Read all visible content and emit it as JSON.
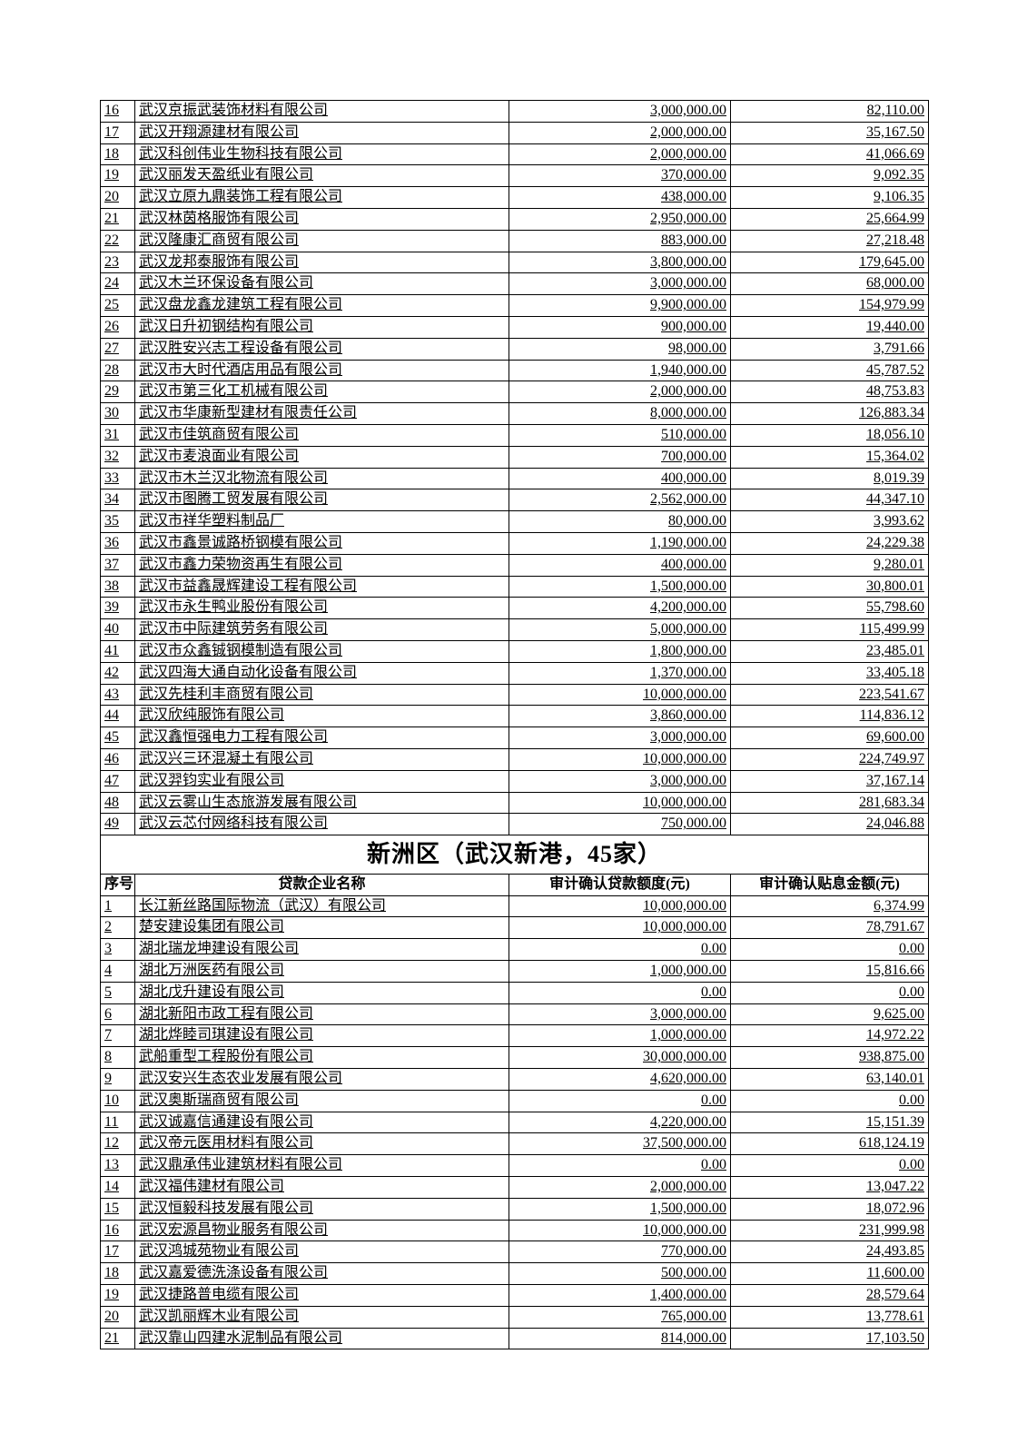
{
  "table1": {
    "rows": [
      {
        "idx": "16",
        "name": "武汉京振武装饰材料有限公司",
        "amt": "3,000,000.00",
        "int": "82,110.00"
      },
      {
        "idx": "17",
        "name": "武汉开翔源建材有限公司",
        "amt": "2,000,000.00",
        "int": "35,167.50"
      },
      {
        "idx": "18",
        "name": "武汉科创伟业生物科技有限公司",
        "amt": "2,000,000.00",
        "int": "41,066.69"
      },
      {
        "idx": "19",
        "name": "武汉丽发天盈纸业有限公司",
        "amt": "370,000.00",
        "int": "9,092.35"
      },
      {
        "idx": "20",
        "name": "武汉立原九鼎装饰工程有限公司",
        "amt": "438,000.00",
        "int": "9,106.35"
      },
      {
        "idx": "21",
        "name": "武汉林茵格服饰有限公司",
        "amt": "2,950,000.00",
        "int": "25,664.99"
      },
      {
        "idx": "22",
        "name": "武汉隆康汇商贸有限公司",
        "amt": "883,000.00",
        "int": "27,218.48"
      },
      {
        "idx": "23",
        "name": "武汉龙邦泰服饰有限公司",
        "amt": "3,800,000.00",
        "int": "179,645.00"
      },
      {
        "idx": "24",
        "name": "武汉木兰环保设备有限公司",
        "amt": "3,000,000.00",
        "int": "68,000.00"
      },
      {
        "idx": "25",
        "name": "武汉盘龙鑫龙建筑工程有限公司",
        "amt": "9,900,000.00",
        "int": "154,979.99"
      },
      {
        "idx": "26",
        "name": "武汉日升初钢结构有限公司",
        "amt": "900,000.00",
        "int": "19,440.00"
      },
      {
        "idx": "27",
        "name": "武汉胜安兴志工程设备有限公司",
        "amt": "98,000.00",
        "int": "3,791.66"
      },
      {
        "idx": "28",
        "name": "武汉市大时代酒店用品有限公司",
        "amt": "1,940,000.00",
        "int": "45,787.52"
      },
      {
        "idx": "29",
        "name": "武汉市第三化工机械有限公司",
        "amt": "2,000,000.00",
        "int": "48,753.83"
      },
      {
        "idx": "30",
        "name": "武汉市华康新型建材有限责任公司",
        "amt": "8,000,000.00",
        "int": "126,883.34"
      },
      {
        "idx": "31",
        "name": "武汉市佳筑商贸有限公司",
        "amt": "510,000.00",
        "int": "18,056.10"
      },
      {
        "idx": "32",
        "name": "武汉市麦浪面业有限公司",
        "amt": "700,000.00",
        "int": "15,364.02"
      },
      {
        "idx": "33",
        "name": "武汉市木兰汉北物流有限公司",
        "amt": "400,000.00",
        "int": "8,019.39"
      },
      {
        "idx": "34",
        "name": "武汉市图腾工贸发展有限公司",
        "amt": "2,562,000.00",
        "int": "44,347.10"
      },
      {
        "idx": "35",
        "name": "武汉市祥华塑料制品厂",
        "amt": "80,000.00",
        "int": "3,993.62"
      },
      {
        "idx": "36",
        "name": "武汉市鑫景诚路桥钢模有限公司",
        "amt": "1,190,000.00",
        "int": "24,229.38"
      },
      {
        "idx": "37",
        "name": "武汉市鑫力荣物资再生有限公司",
        "amt": "400,000.00",
        "int": "9,280.01"
      },
      {
        "idx": "38",
        "name": "武汉市益鑫晟辉建设工程有限公司",
        "amt": "1,500,000.00",
        "int": "30,800.01"
      },
      {
        "idx": "39",
        "name": "武汉市永生鸭业股份有限公司",
        "amt": "4,200,000.00",
        "int": "55,798.60"
      },
      {
        "idx": "40",
        "name": "武汉市中际建筑劳务有限公司",
        "amt": "5,000,000.00",
        "int": "115,499.99"
      },
      {
        "idx": "41",
        "name": "武汉市众鑫铖钢模制造有限公司",
        "amt": "1,800,000.00",
        "int": "23,485.01"
      },
      {
        "idx": "42",
        "name": "武汉四海大通自动化设备有限公司",
        "amt": "1,370,000.00",
        "int": "33,405.18"
      },
      {
        "idx": "43",
        "name": "武汉先桂利丰商贸有限公司",
        "amt": "10,000,000.00",
        "int": "223,541.67"
      },
      {
        "idx": "44",
        "name": "武汉欣纯服饰有限公司",
        "amt": "3,860,000.00",
        "int": "114,836.12"
      },
      {
        "idx": "45",
        "name": "武汉鑫恒强电力工程有限公司",
        "amt": "3,000,000.00",
        "int": "69,600.00"
      },
      {
        "idx": "46",
        "name": "武汉兴三环混凝土有限公司",
        "amt": "10,000,000.00",
        "int": "224,749.97"
      },
      {
        "idx": "47",
        "name": "武汉羿钧实业有限公司",
        "amt": "3,000,000.00",
        "int": "37,167.14"
      },
      {
        "idx": "48",
        "name": "武汉云雾山生态旅游发展有限公司",
        "amt": "10,000,000.00",
        "int": "281,683.34"
      },
      {
        "idx": "49",
        "name": "武汉云芯付网络科技有限公司",
        "amt": "750,000.00",
        "int": "24,046.88"
      }
    ]
  },
  "section2": {
    "title": "新洲区（武汉新港，45家）",
    "headers": {
      "idx": "序号",
      "name": "贷款企业名称",
      "amt": "审计确认贷款额度(元)",
      "int": "审计确认贴息金额(元)"
    },
    "rows": [
      {
        "idx": "1",
        "name": "长江新丝路国际物流（武汉）有限公司",
        "amt": "10,000,000.00",
        "int": "6,374.99"
      },
      {
        "idx": "2",
        "name": "楚安建设集团有限公司",
        "amt": "10,000,000.00",
        "int": "78,791.67"
      },
      {
        "idx": "3",
        "name": "湖北瑞龙坤建设有限公司",
        "amt": "0.00",
        "int": "0.00"
      },
      {
        "idx": "4",
        "name": "湖北万洲医药有限公司",
        "amt": "1,000,000.00",
        "int": "15,816.66"
      },
      {
        "idx": "5",
        "name": "湖北戊升建设有限公司",
        "amt": "0.00",
        "int": "0.00"
      },
      {
        "idx": "6",
        "name": "湖北新阳市政工程有限公司",
        "amt": "3,000,000.00",
        "int": "9,625.00"
      },
      {
        "idx": "7",
        "name": "湖北烨睦司琪建设有限公司",
        "amt": "1,000,000.00",
        "int": "14,972.22"
      },
      {
        "idx": "8",
        "name": "武船重型工程股份有限公司",
        "amt": "30,000,000.00",
        "int": "938,875.00"
      },
      {
        "idx": "9",
        "name": "武汉安兴生态农业发展有限公司",
        "amt": "4,620,000.00",
        "int": "63,140.01"
      },
      {
        "idx": "10",
        "name": "武汉奥斯瑞商贸有限公司",
        "amt": "0.00",
        "int": "0.00"
      },
      {
        "idx": "11",
        "name": "武汉诚嘉信通建设有限公司",
        "amt": "4,220,000.00",
        "int": "15,151.39"
      },
      {
        "idx": "12",
        "name": "武汉帝元医用材料有限公司",
        "amt": "37,500,000.00",
        "int": "618,124.19"
      },
      {
        "idx": "13",
        "name": "武汉鼎承伟业建筑材料有限公司",
        "amt": "0.00",
        "int": "0.00"
      },
      {
        "idx": "14",
        "name": "武汉福伟建材有限公司",
        "amt": "2,000,000.00",
        "int": "13,047.22"
      },
      {
        "idx": "15",
        "name": "武汉恒毅科技发展有限公司",
        "amt": "1,500,000.00",
        "int": "18,072.96"
      },
      {
        "idx": "16",
        "name": "武汉宏源昌物业服务有限公司",
        "amt": "10,000,000.00",
        "int": "231,999.98"
      },
      {
        "idx": "17",
        "name": "武汉鸿城苑物业有限公司",
        "amt": "770,000.00",
        "int": "24,493.85"
      },
      {
        "idx": "18",
        "name": "武汉嘉爱德洗涤设备有限公司",
        "amt": "500,000.00",
        "int": "11,600.00"
      },
      {
        "idx": "19",
        "name": "武汉捷路普电缆有限公司",
        "amt": "1,400,000.00",
        "int": "28,579.64"
      },
      {
        "idx": "20",
        "name": "武汉凯丽辉木业有限公司",
        "amt": "765,000.00",
        "int": "13,778.61"
      },
      {
        "idx": "21",
        "name": "武汉靠山四建水泥制品有限公司",
        "amt": "814,000.00",
        "int": "17,103.50"
      }
    ]
  }
}
